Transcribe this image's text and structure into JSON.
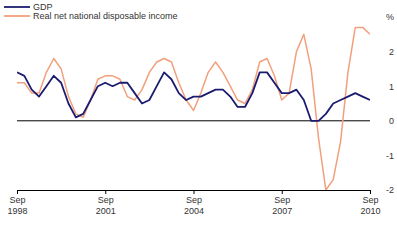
{
  "chart_data": {
    "type": "line",
    "categories": [
      "Sep 1998",
      null,
      null,
      null,
      null,
      null,
      null,
      null,
      null,
      null,
      null,
      null,
      "Sep 2001",
      null,
      null,
      null,
      null,
      null,
      null,
      null,
      null,
      null,
      null,
      null,
      "Sep 2004",
      null,
      null,
      null,
      null,
      null,
      null,
      null,
      null,
      null,
      null,
      null,
      "Sep 2007",
      null,
      null,
      null,
      null,
      null,
      null,
      null,
      null,
      null,
      null,
      null,
      "Sep 2010"
    ],
    "series": [
      {
        "name": "GDP",
        "color": "#1b1b6f",
        "values": [
          1.4,
          1.3,
          0.9,
          0.7,
          1.0,
          1.3,
          1.1,
          0.5,
          0.1,
          0.2,
          0.6,
          1.0,
          1.1,
          1.0,
          1.1,
          1.1,
          0.8,
          0.5,
          0.6,
          1.0,
          1.4,
          1.2,
          0.8,
          0.6,
          0.7,
          0.7,
          0.8,
          0.9,
          0.9,
          0.7,
          0.4,
          0.4,
          0.8,
          1.4,
          1.4,
          1.1,
          0.8,
          0.8,
          0.9,
          0.6,
          0.0,
          0.0,
          0.2,
          0.5,
          0.6,
          0.7,
          0.8,
          0.7,
          0.6
        ]
      },
      {
        "name": "Real net national disposable income",
        "color": "#f2a07c",
        "values": [
          1.1,
          1.1,
          0.8,
          0.8,
          1.4,
          1.8,
          1.5,
          0.7,
          0.2,
          0.1,
          0.6,
          1.2,
          1.3,
          1.3,
          1.2,
          0.7,
          0.6,
          0.9,
          1.4,
          1.7,
          1.8,
          1.7,
          1.1,
          0.6,
          0.3,
          0.8,
          1.4,
          1.7,
          1.4,
          1.0,
          0.6,
          0.5,
          0.9,
          1.7,
          1.8,
          1.3,
          0.6,
          0.8,
          2.0,
          2.5,
          1.5,
          -0.5,
          -2.0,
          -1.7,
          -0.6,
          1.4,
          2.7,
          2.7,
          2.5
        ]
      }
    ],
    "ylim": [
      -2,
      3
    ],
    "yticks": [
      -2,
      -1,
      0,
      1,
      2,
      {
        "value": 3,
        "label": "%"
      }
    ],
    "grid": false,
    "legend": "top-left"
  }
}
